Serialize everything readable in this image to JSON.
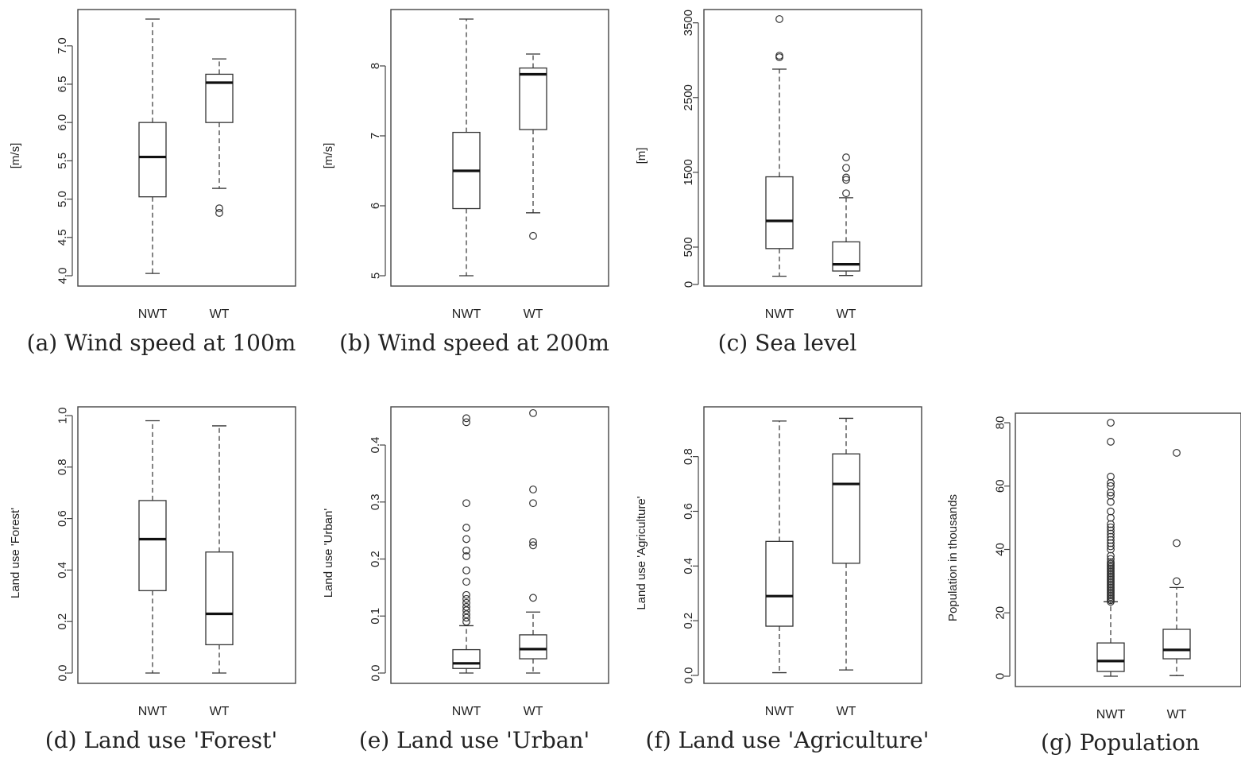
{
  "chart_data": [
    {
      "type": "boxplot",
      "caption": "(a) Wind speed at 100m",
      "xlabel": "",
      "ylabel": "[m/s]",
      "ylim": [
        4.0,
        7.35
      ],
      "yticks": [
        "4.0",
        "4.5",
        "5.0",
        "5.5",
        "6.0",
        "6.5",
        "7.0"
      ],
      "categories": [
        "NWT",
        "WT"
      ],
      "boxes": [
        {
          "name": "NWT",
          "min": 4.03,
          "q1": 5.03,
          "median": 5.55,
          "q3": 6.0,
          "max": 7.35,
          "outliers": []
        },
        {
          "name": "WT",
          "min": 5.14,
          "q1": 6.0,
          "median": 6.52,
          "q3": 6.63,
          "max": 6.83,
          "outliers": [
            4.82,
            4.88
          ]
        }
      ]
    },
    {
      "type": "boxplot",
      "caption": "(b) Wind speed at 200m",
      "xlabel": "",
      "ylabel": "[m/s]",
      "ylim": [
        5.0,
        8.67
      ],
      "yticks": [
        "5",
        "6",
        "7",
        "8"
      ],
      "categories": [
        "NWT",
        "WT"
      ],
      "boxes": [
        {
          "name": "NWT",
          "min": 5.0,
          "q1": 5.96,
          "median": 6.5,
          "q3": 7.05,
          "max": 8.67,
          "outliers": []
        },
        {
          "name": "WT",
          "min": 5.9,
          "q1": 7.09,
          "median": 7.88,
          "q3": 7.97,
          "max": 8.17,
          "outliers": [
            5.57
          ]
        }
      ]
    },
    {
      "type": "boxplot",
      "caption": "(c) Sea level",
      "xlabel": "",
      "ylabel": "[m]",
      "ylim": [
        0,
        3550
      ],
      "yticks": [
        "0",
        "500",
        "1500",
        "2500",
        "3500"
      ],
      "yticks_values": [
        0,
        500,
        1500,
        2500,
        3500
      ],
      "categories": [
        "NWT",
        "WT"
      ],
      "boxes": [
        {
          "name": "NWT",
          "min": 110,
          "q1": 480,
          "median": 850,
          "q3": 1440,
          "max": 2880,
          "outliers": [
            3040,
            3060,
            3550
          ]
        },
        {
          "name": "WT",
          "min": 120,
          "q1": 180,
          "median": 270,
          "q3": 570,
          "max": 1160,
          "outliers": [
            1220,
            1400,
            1430,
            1560,
            1700
          ]
        }
      ]
    },
    {
      "type": "boxplot",
      "caption": "(d) Land use 'Forest'",
      "xlabel": "",
      "ylabel": "Land use 'Forest'",
      "ylim": [
        0.0,
        1.0
      ],
      "yticks": [
        "0.0",
        "0.2",
        "0.4",
        "0.6",
        "0.8",
        "1.0"
      ],
      "categories": [
        "NWT",
        "WT"
      ],
      "boxes": [
        {
          "name": "NWT",
          "min": 0.0,
          "q1": 0.32,
          "median": 0.52,
          "q3": 0.67,
          "max": 0.98,
          "outliers": []
        },
        {
          "name": "WT",
          "min": 0.0,
          "q1": 0.11,
          "median": 0.23,
          "q3": 0.47,
          "max": 0.96,
          "outliers": []
        }
      ]
    },
    {
      "type": "boxplot",
      "caption": "(e) Land use 'Urban'",
      "xlabel": "",
      "ylabel": "Land use 'Urban'",
      "ylim": [
        0.0,
        0.46
      ],
      "yticks": [
        "0.0",
        "0.1",
        "0.2",
        "0.3",
        "0.4"
      ],
      "categories": [
        "NWT",
        "WT"
      ],
      "boxes": [
        {
          "name": "NWT",
          "min": 0.0,
          "q1": 0.008,
          "median": 0.017,
          "q3": 0.041,
          "max": 0.083,
          "outliers": [
            0.09,
            0.097,
            0.103,
            0.11,
            0.116,
            0.123,
            0.13,
            0.137,
            0.16,
            0.18,
            0.205,
            0.215,
            0.235,
            0.255,
            0.298,
            0.44,
            0.447
          ]
        },
        {
          "name": "WT",
          "min": 0.0,
          "q1": 0.025,
          "median": 0.042,
          "q3": 0.067,
          "max": 0.107,
          "outliers": [
            0.132,
            0.224,
            0.23,
            0.298,
            0.322,
            0.456
          ]
        }
      ]
    },
    {
      "type": "boxplot",
      "caption": "(f) Land use 'Agriculture'",
      "xlabel": "",
      "ylabel": "Land use 'Agriculture'",
      "ylim": [
        0.0,
        0.95
      ],
      "yticks": [
        "0.0",
        "0.2",
        "0.4",
        "0.6",
        "0.8"
      ],
      "categories": [
        "NWT",
        "WT"
      ],
      "boxes": [
        {
          "name": "NWT",
          "min": 0.01,
          "q1": 0.18,
          "median": 0.29,
          "q3": 0.49,
          "max": 0.93,
          "outliers": []
        },
        {
          "name": "WT",
          "min": 0.02,
          "q1": 0.41,
          "median": 0.7,
          "q3": 0.81,
          "max": 0.94,
          "outliers": []
        }
      ]
    },
    {
      "type": "boxplot",
      "caption": "(g) Population",
      "xlabel": "",
      "ylabel": "Population in thousands",
      "ylim": [
        0,
        80
      ],
      "yticks": [
        "0",
        "20",
        "40",
        "60",
        "80"
      ],
      "categories": [
        "NWT",
        "WT"
      ],
      "boxes": [
        {
          "name": "NWT",
          "min": 0.0,
          "q1": 1.5,
          "median": 4.8,
          "q3": 10.5,
          "max": 23.5,
          "outliers": [
            23.5,
            24,
            24.5,
            25,
            25.5,
            26,
            26.5,
            27,
            27.5,
            28,
            28.5,
            29,
            29.5,
            30,
            30.5,
            31,
            31.5,
            32,
            32.5,
            33,
            33.5,
            34,
            34.5,
            35,
            35.5,
            36,
            37,
            38,
            40,
            41,
            42,
            43,
            44,
            45,
            46,
            47,
            48,
            50,
            52,
            55,
            57,
            58,
            60,
            61,
            63,
            74,
            80
          ]
        },
        {
          "name": "WT",
          "min": 0.2,
          "q1": 5.5,
          "median": 8.3,
          "q3": 14.8,
          "max": 28.0,
          "outliers": [
            30.0,
            42.0,
            70.5
          ]
        }
      ]
    }
  ]
}
